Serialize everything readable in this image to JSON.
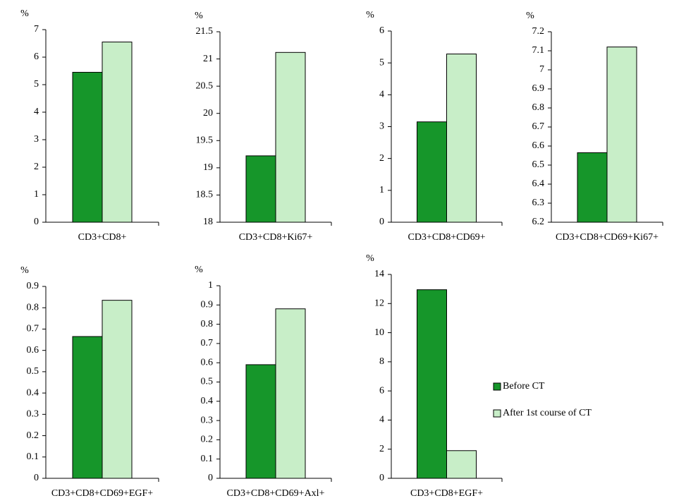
{
  "chart_data": [
    {
      "type": "bar",
      "ylabel": "%",
      "categories": [
        "CD3+CD8+"
      ],
      "ylim": [
        0,
        7
      ],
      "yticks": [
        0,
        1,
        2,
        3,
        4,
        5,
        6,
        7
      ],
      "series": [
        {
          "color": "#16962a",
          "values": [
            5.45
          ]
        },
        {
          "color": "#c8eec8",
          "values": [
            6.55
          ]
        }
      ]
    },
    {
      "type": "bar",
      "ylabel": "%",
      "categories": [
        "CD3+CD8+Ki67+"
      ],
      "ylim": [
        18,
        21.5
      ],
      "yticks": [
        18,
        18.5,
        19,
        19.5,
        20,
        20.5,
        21,
        21.5
      ],
      "series": [
        {
          "color": "#16962a",
          "values": [
            19.22
          ]
        },
        {
          "color": "#c8eec8",
          "values": [
            21.12
          ]
        }
      ]
    },
    {
      "type": "bar",
      "ylabel": "%",
      "categories": [
        "CD3+CD8+CD69+"
      ],
      "ylim": [
        0,
        6
      ],
      "yticks": [
        0,
        1,
        2,
        3,
        4,
        5,
        6
      ],
      "series": [
        {
          "color": "#16962a",
          "values": [
            3.15
          ]
        },
        {
          "color": "#c8eec8",
          "values": [
            5.28
          ]
        }
      ]
    },
    {
      "type": "bar",
      "ylabel": "%",
      "categories": [
        "CD3+CD8+CD69+Ki67+"
      ],
      "ylim": [
        6.2,
        7.2
      ],
      "yticks": [
        6.2,
        6.3,
        6.4,
        6.5,
        6.6,
        6.7,
        6.8,
        6.9,
        7,
        7.1,
        7.2
      ],
      "series": [
        {
          "color": "#16962a",
          "values": [
            6.565
          ]
        },
        {
          "color": "#c8eec8",
          "values": [
            7.12
          ]
        }
      ]
    },
    {
      "type": "bar",
      "ylabel": "%",
      "categories": [
        "CD3+CD8+CD69+EGF+"
      ],
      "ylim": [
        0,
        0.9
      ],
      "yticks": [
        0,
        0.1,
        0.2,
        0.3,
        0.4,
        0.5,
        0.6,
        0.7,
        0.8,
        0.9
      ],
      "series": [
        {
          "color": "#16962a",
          "values": [
            0.665
          ]
        },
        {
          "color": "#c8eec8",
          "values": [
            0.835
          ]
        }
      ]
    },
    {
      "type": "bar",
      "ylabel": "%",
      "categories": [
        "CD3+CD8+CD69+Axl+"
      ],
      "ylim": [
        0,
        1
      ],
      "yticks": [
        0,
        0.1,
        0.2,
        0.3,
        0.4,
        0.5,
        0.6,
        0.7,
        0.8,
        0.9,
        1
      ],
      "series": [
        {
          "color": "#16962a",
          "values": [
            0.59
          ]
        },
        {
          "color": "#c8eec8",
          "values": [
            0.88
          ]
        }
      ]
    },
    {
      "type": "bar",
      "ylabel": "%",
      "categories": [
        "CD3+CD8+EGF+"
      ],
      "ylim": [
        0,
        14
      ],
      "yticks": [
        0,
        2,
        4,
        6,
        8,
        10,
        12,
        14
      ],
      "series": [
        {
          "name": "Before CT",
          "color": "#16962a",
          "values": [
            12.95
          ]
        },
        {
          "name": "After 1st course of CT",
          "color": "#c8eec8",
          "values": [
            1.9
          ]
        }
      ]
    }
  ]
}
